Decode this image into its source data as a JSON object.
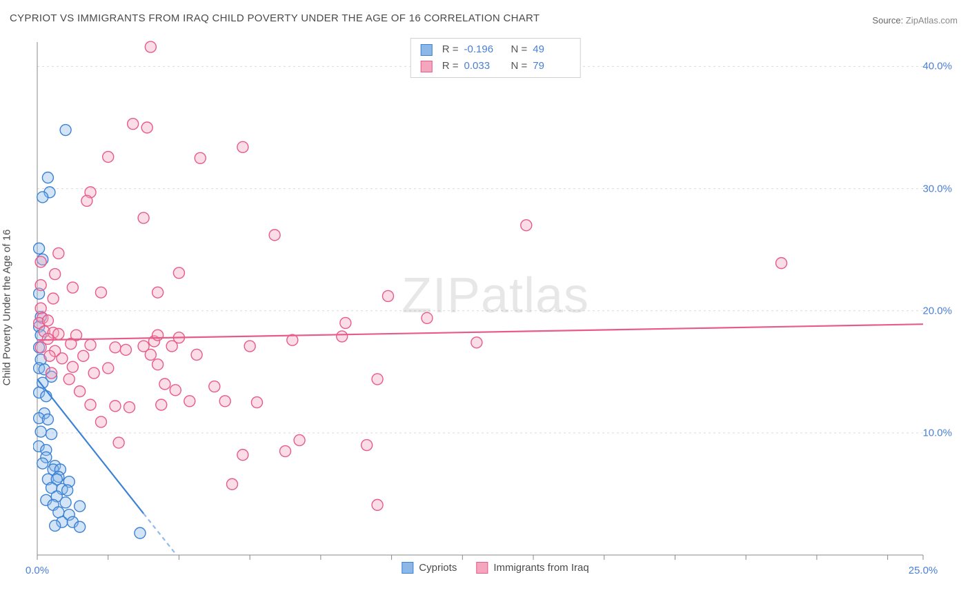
{
  "title": "CYPRIOT VS IMMIGRANTS FROM IRAQ CHILD POVERTY UNDER THE AGE OF 16 CORRELATION CHART",
  "source_label": "Source:",
  "source_value": "ZipAtlas.com",
  "y_axis_label": "Child Poverty Under the Age of 16",
  "watermark": {
    "bold": "ZIP",
    "rest": "atlas"
  },
  "chart": {
    "type": "scatter",
    "background_color": "#ffffff",
    "grid_color": "#d9d9d9",
    "axis_color": "#888888",
    "tick_color": "#888888",
    "tick_label_color": "#4a7fd4",
    "xlim": [
      0,
      25
    ],
    "ylim": [
      0,
      42
    ],
    "x_ticks": [
      0,
      2,
      4,
      6,
      8,
      10,
      12,
      14,
      16,
      18,
      20,
      22,
      24,
      25
    ],
    "x_tick_labels": {
      "0": "0.0%",
      "25": "25.0%"
    },
    "y_ticks": [
      10,
      20,
      30,
      40
    ],
    "y_tick_labels": {
      "10": "10.0%",
      "20": "20.0%",
      "30": "30.0%",
      "40": "40.0%"
    },
    "marker_radius": 8,
    "marker_stroke_width": 1.4,
    "marker_fill_opacity": 0.38,
    "regression_line_width": 2.2,
    "dash_pattern": "6 5"
  },
  "series": [
    {
      "id": "cypriots",
      "label": "Cypriots",
      "color_stroke": "#3b82d6",
      "color_fill": "#8cb8e8",
      "R": "-0.196",
      "N": "49",
      "regression": {
        "solid": {
          "x1": 0,
          "y1": 14.4,
          "x2": 3.0,
          "y2": 3.4
        },
        "dashed": {
          "x1": 3.0,
          "y1": 3.4,
          "x2": 3.93,
          "y2": 0
        }
      },
      "points": [
        [
          0.05,
          21.4
        ],
        [
          0.1,
          19.5
        ],
        [
          0.05,
          18.7
        ],
        [
          0.1,
          18.0
        ],
        [
          0.05,
          17.0
        ],
        [
          0.1,
          16.0
        ],
        [
          0.05,
          15.3
        ],
        [
          0.2,
          15.2
        ],
        [
          0.4,
          14.6
        ],
        [
          0.15,
          14.1
        ],
        [
          0.05,
          13.3
        ],
        [
          0.25,
          13.0
        ],
        [
          0.2,
          11.6
        ],
        [
          0.05,
          11.2
        ],
        [
          0.3,
          11.1
        ],
        [
          0.1,
          10.1
        ],
        [
          0.4,
          9.9
        ],
        [
          0.04,
          8.9
        ],
        [
          0.25,
          8.6
        ],
        [
          0.25,
          8.0
        ],
        [
          0.15,
          7.5
        ],
        [
          0.5,
          7.3
        ],
        [
          0.45,
          7.0
        ],
        [
          0.65,
          7.0
        ],
        [
          0.6,
          6.4
        ],
        [
          0.3,
          6.2
        ],
        [
          0.55,
          6.2
        ],
        [
          0.9,
          6.0
        ],
        [
          0.4,
          5.5
        ],
        [
          0.7,
          5.4
        ],
        [
          0.85,
          5.3
        ],
        [
          0.55,
          4.8
        ],
        [
          0.25,
          4.5
        ],
        [
          0.8,
          4.3
        ],
        [
          0.45,
          4.1
        ],
        [
          1.2,
          4.0
        ],
        [
          0.6,
          3.5
        ],
        [
          0.9,
          3.3
        ],
        [
          0.7,
          2.7
        ],
        [
          1.0,
          2.7
        ],
        [
          0.5,
          2.4
        ],
        [
          1.2,
          2.3
        ],
        [
          0.05,
          25.1
        ],
        [
          0.15,
          24.2
        ],
        [
          0.8,
          34.8
        ],
        [
          0.3,
          30.9
        ],
        [
          0.35,
          29.7
        ],
        [
          0.15,
          29.3
        ],
        [
          2.9,
          1.8
        ]
      ]
    },
    {
      "id": "iraq",
      "label": "Immigrants from Iraq",
      "color_stroke": "#e85a88",
      "color_fill": "#f3a6bd",
      "R": "0.033",
      "N": "79",
      "regression": {
        "solid": {
          "x1": 0,
          "y1": 17.6,
          "x2": 25,
          "y2": 18.9
        },
        "dashed": null
      },
      "points": [
        [
          0.1,
          20.2
        ],
        [
          0.15,
          19.4
        ],
        [
          0.05,
          19.0
        ],
        [
          0.3,
          19.2
        ],
        [
          0.2,
          18.3
        ],
        [
          0.45,
          18.2
        ],
        [
          0.3,
          17.7
        ],
        [
          0.6,
          18.1
        ],
        [
          0.1,
          17.0
        ],
        [
          0.5,
          16.7
        ],
        [
          0.35,
          16.3
        ],
        [
          0.7,
          16.1
        ],
        [
          0.95,
          17.3
        ],
        [
          1.1,
          18.0
        ],
        [
          1.3,
          16.3
        ],
        [
          1.5,
          17.2
        ],
        [
          1.0,
          15.4
        ],
        [
          0.4,
          14.9
        ],
        [
          0.9,
          14.4
        ],
        [
          1.2,
          13.4
        ],
        [
          1.6,
          14.9
        ],
        [
          1.5,
          12.3
        ],
        [
          2.0,
          15.3
        ],
        [
          2.2,
          17.0
        ],
        [
          2.2,
          12.2
        ],
        [
          2.5,
          16.8
        ],
        [
          2.6,
          12.1
        ],
        [
          3.0,
          17.1
        ],
        [
          3.2,
          16.4
        ],
        [
          3.3,
          17.5
        ],
        [
          3.4,
          18.0
        ],
        [
          3.4,
          15.6
        ],
        [
          3.5,
          12.3
        ],
        [
          3.6,
          14.0
        ],
        [
          3.8,
          17.1
        ],
        [
          3.9,
          13.5
        ],
        [
          4.0,
          17.8
        ],
        [
          4.3,
          12.6
        ],
        [
          4.5,
          16.4
        ],
        [
          5.0,
          13.8
        ],
        [
          5.3,
          12.6
        ],
        [
          5.8,
          8.2
        ],
        [
          6.0,
          17.1
        ],
        [
          6.2,
          12.5
        ],
        [
          7.0,
          8.5
        ],
        [
          7.2,
          17.6
        ],
        [
          7.4,
          9.4
        ],
        [
          8.6,
          17.9
        ],
        [
          8.7,
          19.0
        ],
        [
          9.3,
          9.0
        ],
        [
          9.6,
          4.1
        ],
        [
          9.6,
          14.4
        ],
        [
          9.9,
          21.2
        ],
        [
          11.0,
          19.4
        ],
        [
          12.4,
          17.4
        ],
        [
          13.8,
          27.0
        ],
        [
          3.2,
          41.6
        ],
        [
          2.0,
          32.6
        ],
        [
          2.7,
          35.3
        ],
        [
          3.1,
          35.0
        ],
        [
          4.6,
          32.5
        ],
        [
          5.8,
          33.4
        ],
        [
          3.0,
          27.6
        ],
        [
          1.5,
          29.7
        ],
        [
          1.0,
          21.9
        ],
        [
          0.5,
          23.0
        ],
        [
          1.8,
          21.5
        ],
        [
          0.1,
          22.1
        ],
        [
          0.45,
          21.0
        ],
        [
          3.4,
          21.5
        ],
        [
          1.4,
          29.0
        ],
        [
          4.0,
          23.1
        ],
        [
          0.6,
          24.7
        ],
        [
          0.1,
          24.0
        ],
        [
          6.7,
          26.2
        ],
        [
          2.3,
          9.2
        ],
        [
          1.8,
          10.9
        ],
        [
          21.0,
          23.9
        ],
        [
          5.5,
          5.8
        ]
      ]
    }
  ],
  "stats_labels": {
    "R": "R =",
    "N": "N ="
  },
  "footer_legend": [
    {
      "series": "cypriots"
    },
    {
      "series": "iraq"
    }
  ]
}
